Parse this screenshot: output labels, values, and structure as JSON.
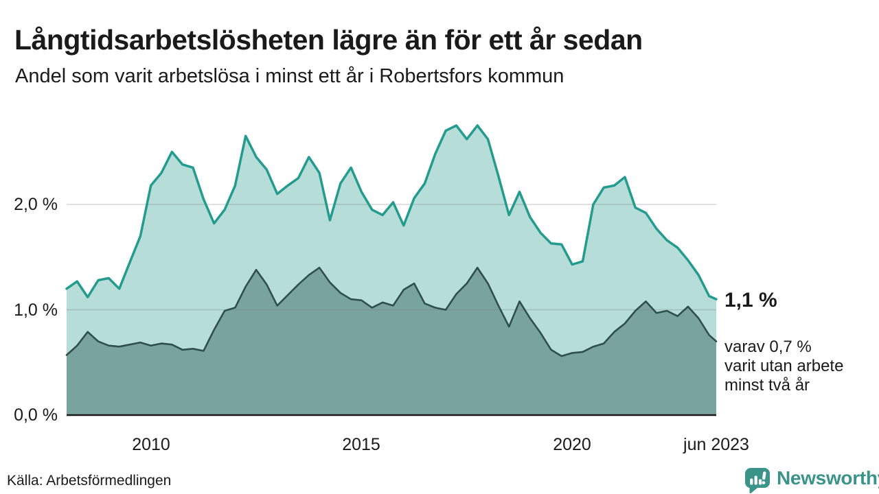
{
  "title": "Långtidsarbetslösheten lägre än för ett år sedan",
  "subtitle": "Andel som varit arbetslösa i minst ett år i Robertsfors kommun",
  "source": "Källa: Arbetsförmedlingen",
  "branding": {
    "name": "Newsworthy",
    "color": "#3a948a"
  },
  "annotations": {
    "latest_value": "1,1 %",
    "note_lines": [
      "varav 0,7 %",
      "varit utan arbete",
      "minst två år"
    ]
  },
  "chart_data": {
    "type": "area",
    "title": "Långtidsarbetslösheten lägre än för ett år sedan",
    "subtitle": "Andel som varit arbetslösa i minst ett år i Robertsfors kommun",
    "unit": "%",
    "grid": "horizontal",
    "legend": "none",
    "x_range": [
      2008.0,
      2023.42
    ],
    "y_range": [
      0,
      2.9
    ],
    "x_ticks": [
      {
        "t": 2010,
        "label": "2010"
      },
      {
        "t": 2015,
        "label": "2015"
      },
      {
        "t": 2020,
        "label": "2020"
      },
      {
        "t": 2023.42,
        "label": "jun 2023"
      }
    ],
    "y_ticks": [
      {
        "v": 0,
        "label": "0,0 %"
      },
      {
        "v": 1,
        "label": "1,0 %"
      },
      {
        "v": 2,
        "label": "2,0 %"
      }
    ],
    "x": [
      2008.0,
      2008.25,
      2008.5,
      2008.75,
      2009.0,
      2009.25,
      2009.5,
      2009.75,
      2010.0,
      2010.25,
      2010.5,
      2010.75,
      2011.0,
      2011.25,
      2011.5,
      2011.75,
      2012.0,
      2012.25,
      2012.5,
      2012.75,
      2013.0,
      2013.25,
      2013.5,
      2013.75,
      2014.0,
      2014.25,
      2014.5,
      2014.75,
      2015.0,
      2015.25,
      2015.5,
      2015.75,
      2016.0,
      2016.25,
      2016.5,
      2016.75,
      2017.0,
      2017.25,
      2017.5,
      2017.75,
      2018.0,
      2018.25,
      2018.5,
      2018.75,
      2019.0,
      2019.25,
      2019.5,
      2019.75,
      2020.0,
      2020.25,
      2020.5,
      2020.75,
      2021.0,
      2021.25,
      2021.5,
      2021.75,
      2022.0,
      2022.25,
      2022.5,
      2022.75,
      2023.0,
      2023.25,
      2023.42
    ],
    "series": [
      {
        "name": "Arbetslösa minst ett år",
        "color": "#239b8e",
        "fill": "#b6ddd7",
        "last_value_label": "1,1 %",
        "values": [
          1.2,
          1.27,
          1.12,
          1.28,
          1.3,
          1.2,
          1.45,
          1.7,
          2.18,
          2.3,
          2.5,
          2.38,
          2.35,
          2.05,
          1.82,
          1.95,
          2.18,
          2.65,
          2.45,
          2.33,
          2.1,
          2.18,
          2.25,
          2.45,
          2.3,
          1.85,
          2.2,
          2.35,
          2.12,
          1.95,
          1.9,
          2.02,
          1.8,
          2.06,
          2.2,
          2.48,
          2.7,
          2.75,
          2.62,
          2.75,
          2.62,
          2.27,
          1.9,
          2.12,
          1.88,
          1.73,
          1.63,
          1.62,
          1.43,
          1.46,
          2.0,
          2.16,
          2.18,
          2.26,
          1.97,
          1.92,
          1.77,
          1.66,
          1.59,
          1.47,
          1.33,
          1.13,
          1.1
        ]
      },
      {
        "name": "Arbetslösa minst två år",
        "color": "#2f4f4a",
        "fill": "#79a49d",
        "last_value_label": "0,7 %",
        "values": [
          0.57,
          0.66,
          0.79,
          0.7,
          0.66,
          0.65,
          0.67,
          0.69,
          0.66,
          0.68,
          0.67,
          0.62,
          0.63,
          0.61,
          0.81,
          0.99,
          1.02,
          1.22,
          1.38,
          1.24,
          1.04,
          1.14,
          1.24,
          1.33,
          1.4,
          1.26,
          1.16,
          1.1,
          1.09,
          1.02,
          1.07,
          1.04,
          1.19,
          1.25,
          1.06,
          1.02,
          1.0,
          1.15,
          1.25,
          1.4,
          1.25,
          1.04,
          0.84,
          1.08,
          0.92,
          0.78,
          0.62,
          0.56,
          0.59,
          0.6,
          0.65,
          0.68,
          0.79,
          0.87,
          0.99,
          1.08,
          0.97,
          0.99,
          0.94,
          1.03,
          0.92,
          0.76,
          0.7
        ]
      }
    ]
  }
}
